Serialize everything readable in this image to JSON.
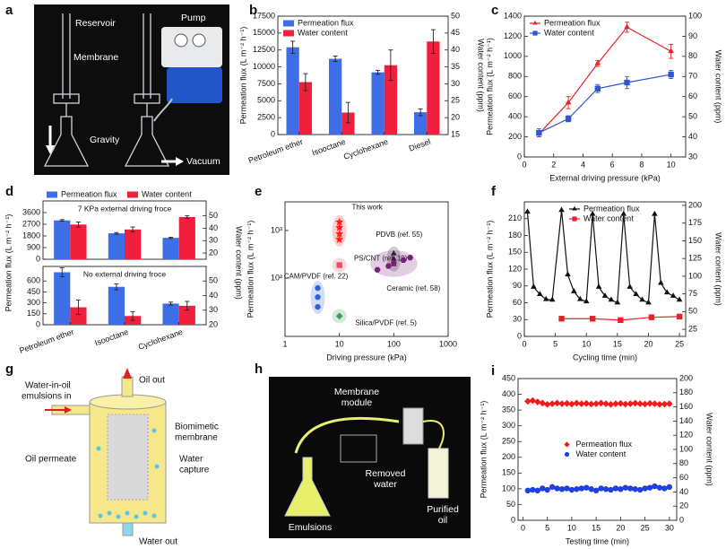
{
  "illustrations": [
    {
      "label": "a",
      "texts": [
        "Reservoir",
        "Pump",
        "Membrane",
        "Gravity",
        "Vacuum"
      ]
    },
    {
      "label": "g",
      "texts": [
        "Oil out",
        "Water-in-oil",
        "emulsions in",
        "Biomimetic",
        "membrane",
        "Oil permeate",
        "Water",
        "capture",
        "Water out"
      ]
    },
    {
      "label": "h",
      "texts": [
        "Membrane",
        "module",
        "Removed",
        "water",
        "Emulsions",
        "Purified",
        "oil"
      ]
    }
  ],
  "chart_data": [
    {
      "label": "b",
      "type": "bar",
      "categories": [
        "Petroleum ether",
        "Isooctane",
        "Cyclohexane",
        "Diesel"
      ],
      "ylabel": "Permeation flux (L m⁻² h⁻¹)",
      "y2label": "Water content (ppm)",
      "ylim": [
        0,
        17500
      ],
      "yticks": [
        0,
        2500,
        5000,
        7500,
        10000,
        12500,
        15000,
        17500
      ],
      "y2lim": [
        15,
        50
      ],
      "y2ticks": [
        15,
        20,
        25,
        30,
        35,
        40,
        45,
        50
      ],
      "legend": "upper left",
      "series": [
        {
          "name": "Permeation flux",
          "color": "#3d6ee6",
          "values": [
            12900,
            11200,
            9200,
            3300
          ],
          "errors": [
            900,
            400,
            300,
            500
          ]
        },
        {
          "name": "Water content",
          "color": "#f0203c",
          "axis": "y2",
          "values": [
            30.5,
            21.5,
            35.5,
            42.5
          ],
          "errors": [
            2.5,
            3,
            4.5,
            3.5
          ]
        }
      ]
    },
    {
      "label": "c",
      "type": "line",
      "x": [
        1,
        3,
        5,
        7,
        10
      ],
      "xlabel": "External driving pressure (kPa)",
      "ylabel": "Permeation flux (L m⁻² h⁻¹)",
      "y2label": "Water content (ppm)",
      "xlim": [
        0,
        11
      ],
      "xticks": [
        0,
        2,
        4,
        6,
        8,
        10
      ],
      "ylim": [
        0,
        1400
      ],
      "yticks": [
        0,
        200,
        400,
        600,
        800,
        1000,
        1200,
        1400
      ],
      "y2lim": [
        30,
        100
      ],
      "y2ticks": [
        30,
        40,
        50,
        60,
        70,
        80,
        90,
        100
      ],
      "legend": "upper left",
      "series": [
        {
          "name": "Permeation flux",
          "color": "#e8202a",
          "marker": "triangle",
          "values": [
            230,
            540,
            930,
            1290,
            1050
          ],
          "errors": [
            30,
            60,
            30,
            50,
            70
          ]
        },
        {
          "name": "Water content",
          "color": "#2f55d4",
          "marker": "square",
          "axis": "y2",
          "values": [
            42,
            49,
            64,
            67,
            71
          ],
          "errors": [
            2,
            1.5,
            2,
            3,
            2
          ]
        }
      ]
    },
    {
      "label": "d",
      "type": "bar",
      "categories": [
        "Petroleum ether",
        "Isooctane",
        "Cyclohexane"
      ],
      "ylabel": "Permeation flux (L m⁻² h⁻¹)",
      "y2label": "Water content (ppm)",
      "legend": "upper left",
      "panels": [
        {
          "annotation": "7 KPa external driving froce",
          "ylim": [
            0,
            4500
          ],
          "yticks": [
            0,
            900,
            1800,
            2700,
            3600
          ],
          "y2lim": [
            15,
            62
          ],
          "y2ticks": [
            20,
            30,
            40,
            50
          ],
          "series": [
            {
              "name": "Permeation flux",
              "color": "#3d6ee6",
              "values": [
                3000,
                2000,
                1650
              ],
              "errors": [
                60,
                60,
                50
              ]
            },
            {
              "name": "Water content",
              "color": "#f0203c",
              "axis": "y2",
              "values": [
                43,
                39,
                49
              ],
              "errors": [
                2,
                2,
                1
              ]
            }
          ]
        },
        {
          "annotation": "No external driving froce",
          "ylim": [
            0,
            800
          ],
          "yticks": [
            0,
            150,
            300,
            450,
            600
          ],
          "y2lim": [
            20,
            60
          ],
          "y2ticks": [
            20,
            30,
            40,
            50
          ],
          "series": [
            {
              "color": "#3d6ee6",
              "values": [
                720,
                520,
                290
              ],
              "errors": [
                60,
                40,
                20
              ]
            },
            {
              "color": "#f0203c",
              "axis": "y2",
              "values": [
                32,
                26,
                33
              ],
              "errors": [
                5,
                3,
                3
              ]
            }
          ]
        }
      ]
    },
    {
      "label": "e",
      "type": "scatter",
      "xlabel": "Driving pressure (kPa)",
      "ylabel": "Permeation flux (L m⁻² h⁻¹)",
      "xlog": true,
      "ylog": true,
      "xlim": [
        1,
        1000
      ],
      "xticks": [
        1,
        10,
        100,
        1000
      ],
      "ylim": [
        6,
        4000
      ],
      "yticks": [
        {
          "value": 100,
          "label": "10²"
        },
        {
          "value": 1000,
          "label": "10³"
        }
      ],
      "legend": "none",
      "series": [
        {
          "name": "This work",
          "color": "#ff1a1a",
          "marker": "star",
          "x": [
            10,
            10,
            10,
            10
          ],
          "values": [
            1500,
            1150,
            850,
            650
          ]
        },
        {
          "name": "CAM/PVDF (ref. 22)",
          "color": "#2f62d8",
          "marker": "circle",
          "x": [
            4,
            4,
            4
          ],
          "values": [
            62,
            40,
            25
          ]
        },
        {
          "name": "PS/CNT (ref. 19)",
          "color": "#e8506a",
          "marker": "square",
          "x": [
            10
          ],
          "values": [
            188
          ]
        },
        {
          "name": "Silica/PVDF (ref. 5)",
          "color": "#3a9a5a",
          "marker": "diamond",
          "x": [
            10
          ],
          "values": [
            16
          ]
        },
        {
          "name": "PDVB (ref. 55)",
          "color": "#222222",
          "marker": "triangle",
          "x": [
            100,
            100,
            100
          ],
          "values": [
            328,
            253,
            195
          ]
        },
        {
          "name": "Ceramic (ref. 58)",
          "color": "#7a1f7a",
          "marker": "hexagon",
          "x": [
            50,
            80,
            100,
            150,
            200
          ],
          "values": [
            150,
            180,
            210,
            240,
            270
          ]
        }
      ]
    },
    {
      "label": "f",
      "type": "line",
      "xlabel": "Cycling time (min)",
      "ylabel": "Permeation flux (L m⁻² h⁻¹)",
      "y2label": "Water content (ppm)",
      "xlim": [
        0,
        26
      ],
      "xticks": [
        0,
        5,
        10,
        15,
        20,
        25
      ],
      "ylim": [
        0,
        240
      ],
      "yticks": [
        0,
        30,
        60,
        90,
        120,
        150,
        180,
        210
      ],
      "y2lim": [
        15,
        205
      ],
      "y2ticks": [
        25,
        50,
        75,
        100,
        125,
        150,
        175,
        200
      ],
      "legend": "upper center",
      "series": [
        {
          "name": "Permeation flux",
          "color": "#111111",
          "marker": "triangle",
          "x": [
            0.5,
            1.5,
            2.5,
            3.5,
            4.5,
            6,
            7,
            8,
            9,
            10,
            11,
            12,
            13,
            14,
            15,
            16,
            17,
            18,
            19,
            20,
            21,
            22,
            23,
            24,
            25
          ],
          "values": [
            222,
            88,
            75,
            66,
            65,
            225,
            110,
            80,
            66,
            62,
            218,
            88,
            72,
            65,
            60,
            218,
            88,
            75,
            65,
            60,
            218,
            95,
            78,
            72,
            65
          ]
        },
        {
          "name": "Water content",
          "color": "#e8202a",
          "marker": "square",
          "axis": "y2",
          "x": [
            6,
            11,
            15.5,
            20.5,
            25
          ],
          "values": [
            40,
            40,
            38,
            42,
            43
          ]
        }
      ]
    },
    {
      "label": "i",
      "type": "scatter",
      "x": [
        1,
        2,
        3,
        4,
        5,
        6,
        7,
        8,
        9,
        10,
        11,
        12,
        13,
        14,
        15,
        16,
        17,
        18,
        19,
        20,
        21,
        22,
        23,
        24,
        25,
        26,
        27,
        28,
        29,
        30
      ],
      "xlabel": "Testing time (min)",
      "ylabel": "Permeation flux (L m⁻² h⁻¹)",
      "y2label": "Water content (ppm)",
      "xlim": [
        -1,
        31.5
      ],
      "xticks": [
        0,
        5,
        10,
        15,
        20,
        25,
        30
      ],
      "ylim": [
        0,
        450
      ],
      "yticks": [
        0,
        50,
        100,
        150,
        200,
        250,
        300,
        350,
        400,
        450
      ],
      "y2lim": [
        0,
        200
      ],
      "y2ticks": [
        0,
        20,
        40,
        60,
        80,
        100,
        120,
        140,
        160,
        180,
        200
      ],
      "legend": "center",
      "series": [
        {
          "name": "Permeation flux",
          "color": "#f01c1c",
          "marker": "diamond",
          "values": [
            378,
            380,
            376,
            372,
            368,
            370,
            372,
            370,
            371,
            369,
            372,
            370,
            371,
            369,
            370,
            372,
            370,
            368,
            370,
            371,
            369,
            370,
            372,
            370,
            369,
            371,
            370,
            368,
            369,
            370
          ]
        },
        {
          "name": "Water content",
          "color": "#1f3fe0",
          "marker": "circle",
          "axis": "y2",
          "values": [
            42,
            43,
            42,
            45,
            43,
            47,
            45,
            44,
            45,
            43,
            44,
            45,
            46,
            44,
            42,
            45,
            44,
            43,
            45,
            44,
            46,
            45,
            44,
            43,
            45,
            46,
            48,
            46,
            45,
            47
          ]
        }
      ]
    }
  ]
}
